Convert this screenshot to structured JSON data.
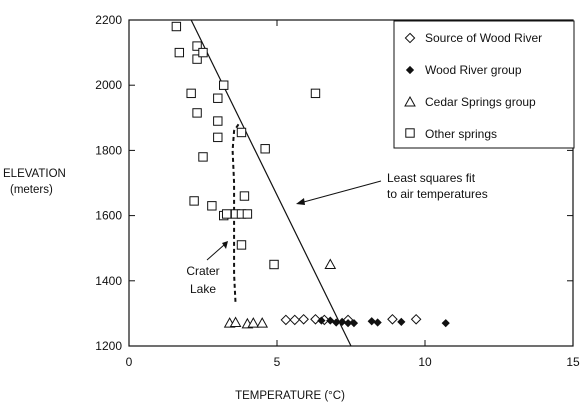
{
  "chart_data": {
    "type": "scatter",
    "title": "",
    "xlabel": "TEMPERATURE (°C)",
    "ylabel_line1": "ELEVATION",
    "ylabel_line2": "(meters)",
    "xlim": [
      0,
      15
    ],
    "ylim": [
      1200,
      2200
    ],
    "x_ticks": [
      0,
      5,
      10,
      15
    ],
    "y_ticks": [
      1200,
      1400,
      1600,
      1800,
      2000,
      2200
    ],
    "grid": false,
    "legend_position": "top-right",
    "series": [
      {
        "name": "Source of Wood River",
        "marker": "diamond-open",
        "points": [
          [
            5.3,
            1280
          ],
          [
            5.6,
            1280
          ],
          [
            5.9,
            1282
          ],
          [
            6.3,
            1282
          ],
          [
            6.6,
            1280
          ],
          [
            7.4,
            1280
          ],
          [
            8.9,
            1282
          ],
          [
            9.7,
            1282
          ]
        ]
      },
      {
        "name": "Wood River group",
        "marker": "diamond-filled",
        "points": [
          [
            6.5,
            1278
          ],
          [
            6.8,
            1278
          ],
          [
            7.0,
            1272
          ],
          [
            7.2,
            1274
          ],
          [
            7.4,
            1270
          ],
          [
            7.6,
            1270
          ],
          [
            8.2,
            1276
          ],
          [
            8.4,
            1272
          ],
          [
            9.2,
            1274
          ],
          [
            10.7,
            1270
          ]
        ]
      },
      {
        "name": "Cedar Springs group",
        "marker": "triangle-open",
        "points": [
          [
            3.4,
            1270
          ],
          [
            3.6,
            1272
          ],
          [
            4.0,
            1268
          ],
          [
            4.2,
            1270
          ],
          [
            4.5,
            1270
          ],
          [
            6.8,
            1450
          ]
        ]
      },
      {
        "name": "Other springs",
        "marker": "square-open",
        "points": [
          [
            1.6,
            2180
          ],
          [
            1.7,
            2100
          ],
          [
            2.3,
            2120
          ],
          [
            2.3,
            2080
          ],
          [
            2.5,
            2100
          ],
          [
            2.1,
            1975
          ],
          [
            3.2,
            2000
          ],
          [
            3.0,
            1960
          ],
          [
            2.3,
            1915
          ],
          [
            3.0,
            1890
          ],
          [
            3.0,
            1840
          ],
          [
            3.8,
            1855
          ],
          [
            2.5,
            1780
          ],
          [
            4.6,
            1805
          ],
          [
            6.3,
            1975
          ],
          [
            2.2,
            1645
          ],
          [
            2.8,
            1630
          ],
          [
            3.2,
            1600
          ],
          [
            3.3,
            1605
          ],
          [
            3.6,
            1605
          ],
          [
            3.8,
            1605
          ],
          [
            4.0,
            1605
          ],
          [
            3.9,
            1660
          ],
          [
            3.8,
            1510
          ],
          [
            4.9,
            1450
          ]
        ]
      }
    ],
    "fit_line": {
      "label_line1": "Least squares fit",
      "label_line2": "to air temperatures",
      "points": [
        [
          2.1,
          2200
        ],
        [
          7.5,
          1200
        ]
      ]
    },
    "crater_lake": {
      "label_line1": "Crater",
      "label_line2": "Lake",
      "points": [
        [
          3.7,
          1880
        ],
        [
          3.55,
          1860
        ],
        [
          3.5,
          1800
        ],
        [
          3.55,
          1700
        ],
        [
          3.55,
          1600
        ],
        [
          3.55,
          1500
        ],
        [
          3.55,
          1420
        ],
        [
          3.6,
          1330
        ]
      ]
    }
  }
}
